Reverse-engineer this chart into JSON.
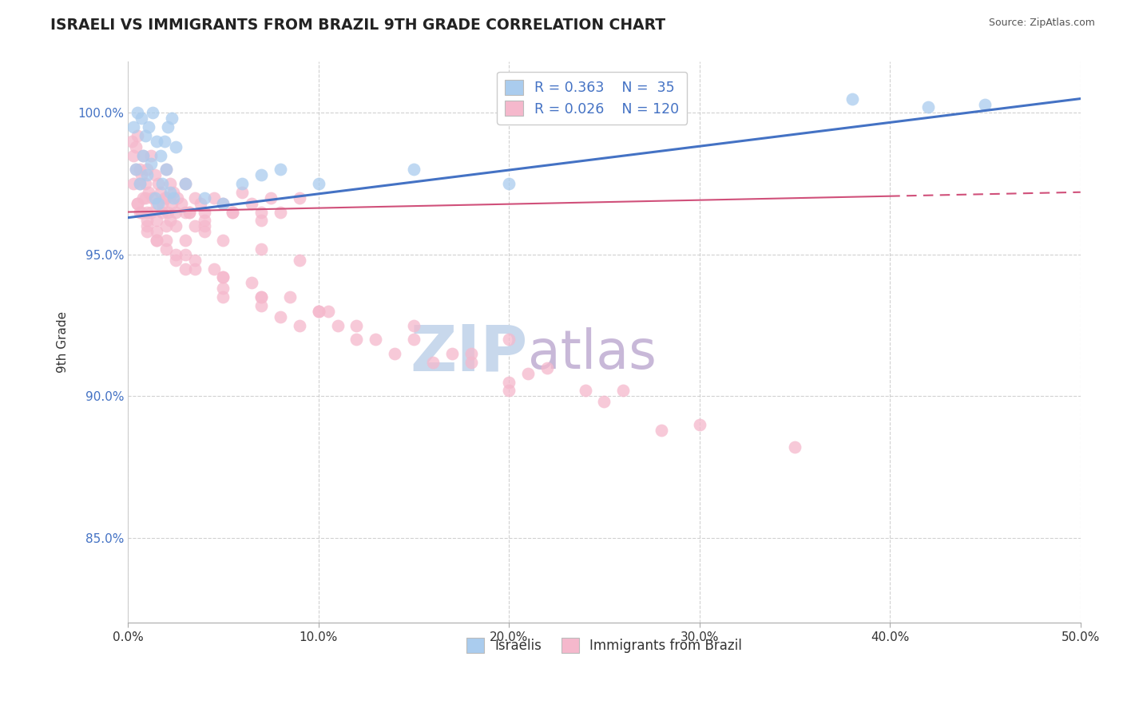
{
  "title": "ISRAELI VS IMMIGRANTS FROM BRAZIL 9TH GRADE CORRELATION CHART",
  "source_text": "Source: ZipAtlas.com",
  "ylabel": "9th Grade",
  "x_min": 0.0,
  "x_max": 50.0,
  "y_min": 82.0,
  "y_max": 101.8,
  "x_ticks": [
    0.0,
    10.0,
    20.0,
    30.0,
    40.0,
    50.0
  ],
  "x_tick_labels": [
    "0.0%",
    "10.0%",
    "20.0%",
    "30.0%",
    "40.0%",
    "50.0%"
  ],
  "y_ticks": [
    85.0,
    90.0,
    95.0,
    100.0
  ],
  "y_tick_labels": [
    "85.0%",
    "90.0%",
    "95.0%",
    "100.0%"
  ],
  "legend_r1": "R = 0.363",
  "legend_n1": "N =  35",
  "legend_r2": "R = 0.026",
  "legend_n2": "N = 120",
  "color_israeli": "#aaccee",
  "color_brazil": "#f5b8cc",
  "color_trendline_israeli": "#4472c4",
  "color_trendline_brazil": "#d0507a",
  "watermark_zip": "ZIP",
  "watermark_atlas": "atlas",
  "watermark_color_zip": "#c8d8ec",
  "watermark_color_atlas": "#c8b8d8",
  "background_color": "#ffffff",
  "israeli_x": [
    0.3,
    0.5,
    0.7,
    0.9,
    1.1,
    1.3,
    1.5,
    1.7,
    1.9,
    2.1,
    2.3,
    2.5,
    0.4,
    0.6,
    0.8,
    1.0,
    1.2,
    1.4,
    1.6,
    1.8,
    2.0,
    2.2,
    2.4,
    3.0,
    4.0,
    5.0,
    6.0,
    7.0,
    8.0,
    10.0,
    15.0,
    20.0,
    38.0,
    42.0,
    45.0
  ],
  "israeli_y": [
    99.5,
    100.0,
    99.8,
    99.2,
    99.5,
    100.0,
    99.0,
    98.5,
    99.0,
    99.5,
    99.8,
    98.8,
    98.0,
    97.5,
    98.5,
    97.8,
    98.2,
    97.0,
    96.8,
    97.5,
    98.0,
    97.2,
    97.0,
    97.5,
    97.0,
    96.8,
    97.5,
    97.8,
    98.0,
    97.5,
    98.0,
    97.5,
    100.5,
    100.2,
    100.3
  ],
  "brazil_x": [
    0.2,
    0.3,
    0.4,
    0.5,
    0.6,
    0.7,
    0.8,
    0.9,
    1.0,
    1.1,
    1.2,
    1.3,
    1.4,
    1.5,
    1.6,
    1.7,
    1.8,
    1.9,
    2.0,
    2.1,
    2.2,
    2.3,
    2.4,
    2.5,
    2.6,
    2.8,
    3.0,
    3.2,
    3.5,
    3.8,
    4.0,
    4.5,
    5.0,
    5.5,
    6.0,
    6.5,
    7.0,
    7.5,
    8.0,
    9.0,
    0.3,
    0.5,
    0.8,
    1.0,
    1.5,
    2.0,
    2.5,
    3.0,
    3.5,
    4.0,
    0.4,
    0.6,
    0.9,
    1.2,
    1.8,
    2.2,
    3.2,
    4.0,
    5.5,
    7.0,
    0.5,
    0.7,
    1.0,
    1.5,
    2.0,
    3.0,
    4.0,
    5.0,
    7.0,
    9.0,
    0.6,
    1.0,
    1.5,
    2.5,
    3.5,
    5.0,
    7.0,
    10.0,
    15.0,
    20.0,
    2.0,
    3.0,
    4.5,
    6.5,
    8.5,
    10.5,
    12.0,
    15.0,
    18.0,
    22.0,
    1.0,
    2.0,
    3.5,
    5.0,
    7.0,
    10.0,
    13.0,
    17.0,
    21.0,
    26.0,
    1.5,
    3.0,
    5.0,
    8.0,
    12.0,
    16.0,
    20.0,
    25.0,
    30.0,
    35.0,
    2.5,
    5.0,
    9.0,
    14.0,
    20.0,
    28.0,
    7.0,
    11.0,
    18.0,
    24.0
  ],
  "brazil_y": [
    99.0,
    98.5,
    98.8,
    99.2,
    98.0,
    97.8,
    98.5,
    97.5,
    98.0,
    97.2,
    98.5,
    97.0,
    97.8,
    96.8,
    97.5,
    97.2,
    96.5,
    97.0,
    98.0,
    96.5,
    97.5,
    96.8,
    97.2,
    96.5,
    97.0,
    96.8,
    97.5,
    96.5,
    97.0,
    96.8,
    96.5,
    97.0,
    96.8,
    96.5,
    97.2,
    96.8,
    96.5,
    97.0,
    96.5,
    97.0,
    97.5,
    96.8,
    97.0,
    96.5,
    96.2,
    97.0,
    96.0,
    96.5,
    96.0,
    96.2,
    98.0,
    97.5,
    97.0,
    96.5,
    96.8,
    96.2,
    96.5,
    96.0,
    96.5,
    96.2,
    96.8,
    96.5,
    96.2,
    95.8,
    96.0,
    95.5,
    95.8,
    95.5,
    95.2,
    94.8,
    96.5,
    96.0,
    95.5,
    95.0,
    94.5,
    94.2,
    93.5,
    93.0,
    92.5,
    92.0,
    95.5,
    95.0,
    94.5,
    94.0,
    93.5,
    93.0,
    92.5,
    92.0,
    91.5,
    91.0,
    95.8,
    95.2,
    94.8,
    94.2,
    93.5,
    93.0,
    92.0,
    91.5,
    90.8,
    90.2,
    95.5,
    94.5,
    93.8,
    92.8,
    92.0,
    91.2,
    90.5,
    89.8,
    89.0,
    88.2,
    94.8,
    93.5,
    92.5,
    91.5,
    90.2,
    88.8,
    93.2,
    92.5,
    91.2,
    90.2
  ],
  "brazil_trendline_x0": 0.0,
  "brazil_trendline_y0": 96.5,
  "brazil_trendline_x1": 50.0,
  "brazil_trendline_y1": 97.2,
  "israeli_trendline_x0": 0.0,
  "israeli_trendline_y0": 96.3,
  "israeli_trendline_x1": 50.0,
  "israeli_trendline_y1": 100.5
}
